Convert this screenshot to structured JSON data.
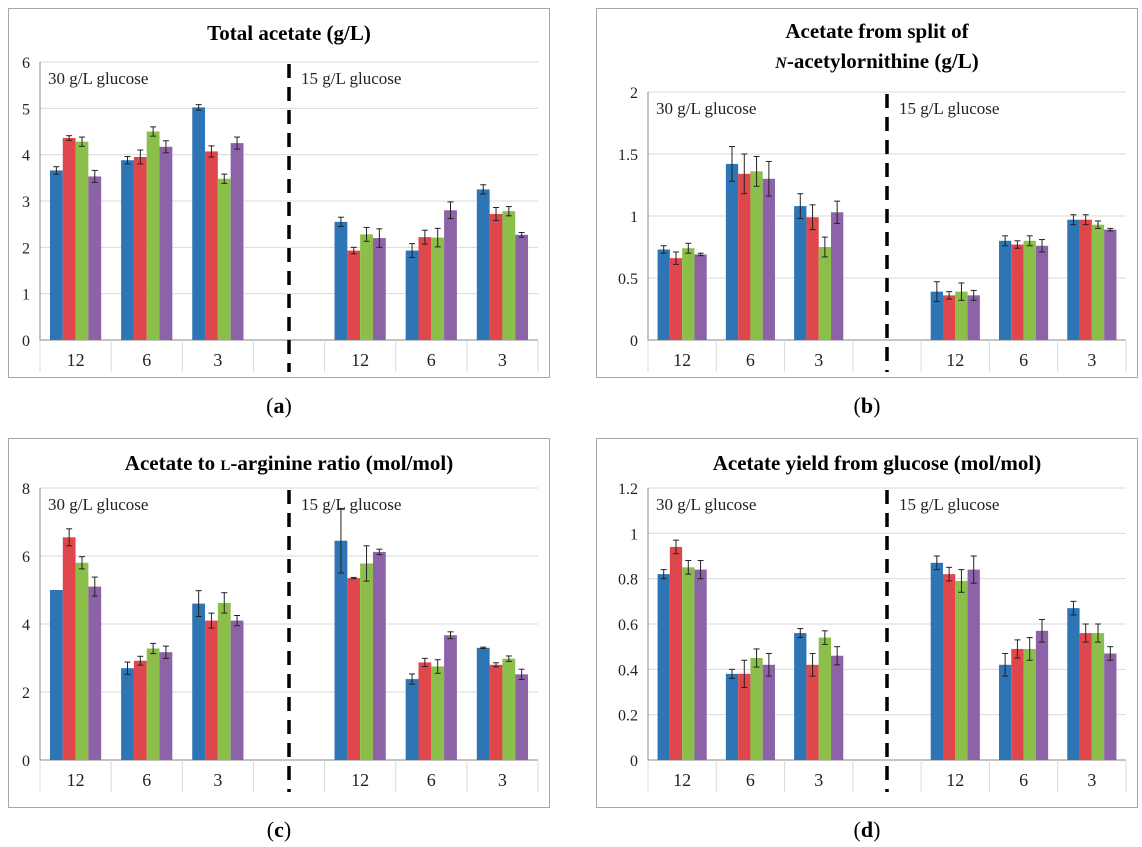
{
  "colors": {
    "series": [
      "#2e75b6",
      "#e0474c",
      "#8cbe4a",
      "#8d63a8"
    ],
    "errorbar": "#222222",
    "grid": "#d9d9d9",
    "frame": "#a6a6a6"
  },
  "chart_data": [
    {
      "type": "bar",
      "panel": "a",
      "title": "Total acetate (g/L)",
      "ylim": [
        0,
        6
      ],
      "yticks": [
        "0",
        "1",
        "2",
        "3",
        "4",
        "5",
        "6"
      ],
      "categories": [
        "12",
        "6",
        "3",
        "",
        "12",
        "6",
        "3"
      ],
      "group_labels": [
        "30 g/L glucose",
        "15 g/L glucose"
      ],
      "divider_after_category": 3,
      "series": [
        {
          "values": [
            3.66,
            3.88,
            5.02,
            null,
            2.55,
            1.93,
            3.25
          ],
          "errors": [
            0.08,
            0.08,
            0.06,
            null,
            0.1,
            0.15,
            0.1
          ]
        },
        {
          "values": [
            4.36,
            3.95,
            4.07,
            null,
            1.93,
            2.22,
            2.72
          ],
          "errors": [
            0.05,
            0.15,
            0.12,
            null,
            0.07,
            0.15,
            0.14
          ]
        },
        {
          "values": [
            4.28,
            4.5,
            3.48,
            null,
            2.28,
            2.21,
            2.78
          ],
          "errors": [
            0.1,
            0.1,
            0.1,
            null,
            0.15,
            0.2,
            0.1
          ]
        },
        {
          "values": [
            3.53,
            4.17,
            4.25,
            null,
            2.2,
            2.8,
            2.27
          ],
          "errors": [
            0.13,
            0.13,
            0.13,
            null,
            0.2,
            0.18,
            0.05
          ]
        }
      ]
    },
    {
      "type": "bar",
      "panel": "b",
      "title": "Acetate from split of",
      "title_line2_italic": "N",
      "title_line2_rest": "-acetylornithine (g/L)",
      "ylim": [
        0,
        2
      ],
      "yticks": [
        "0",
        "0.5",
        "1",
        "1.5",
        "2"
      ],
      "categories": [
        "12",
        "6",
        "3",
        "",
        "12",
        "6",
        "3"
      ],
      "group_labels": [
        "30 g/L glucose",
        "15 g/L glucose"
      ],
      "divider_after_category": 3,
      "series": [
        {
          "values": [
            0.73,
            1.42,
            1.08,
            null,
            0.39,
            0.8,
            0.97
          ],
          "errors": [
            0.03,
            0.14,
            0.1,
            null,
            0.08,
            0.04,
            0.04
          ]
        },
        {
          "values": [
            0.66,
            1.34,
            0.99,
            null,
            0.36,
            0.77,
            0.97
          ],
          "errors": [
            0.05,
            0.16,
            0.1,
            null,
            0.03,
            0.03,
            0.04
          ]
        },
        {
          "values": [
            0.74,
            1.36,
            0.75,
            null,
            0.39,
            0.8,
            0.93
          ],
          "errors": [
            0.04,
            0.12,
            0.08,
            null,
            0.07,
            0.04,
            0.03
          ]
        },
        {
          "values": [
            0.69,
            1.3,
            1.03,
            null,
            0.36,
            0.76,
            0.89
          ],
          "errors": [
            0.01,
            0.14,
            0.09,
            null,
            0.04,
            0.05,
            0.01
          ]
        }
      ]
    },
    {
      "type": "bar",
      "panel": "c",
      "title_prefix": "Acetate to ",
      "title_smallcaps": "L",
      "title_suffix": "-arginine ratio (mol/mol)",
      "ylim": [
        0,
        8
      ],
      "yticks": [
        "0",
        "2",
        "4",
        "6",
        "8"
      ],
      "categories": [
        "12",
        "6",
        "3",
        "",
        "12",
        "6",
        "3"
      ],
      "group_labels": [
        "30 g/L glucose",
        "15 g/L glucose"
      ],
      "divider_after_category": 3,
      "series": [
        {
          "values": [
            5.0,
            2.7,
            4.6,
            null,
            6.45,
            2.38,
            3.3
          ],
          "errors": [
            0.0,
            0.18,
            0.38,
            null,
            0.95,
            0.15,
            0.02
          ]
        },
        {
          "values": [
            6.55,
            2.92,
            4.1,
            null,
            5.35,
            2.87,
            2.8
          ],
          "errors": [
            0.25,
            0.13,
            0.22,
            null,
            0.02,
            0.12,
            0.06
          ]
        },
        {
          "values": [
            5.8,
            3.28,
            4.62,
            null,
            5.78,
            2.75,
            2.98
          ],
          "errors": [
            0.18,
            0.15,
            0.3,
            null,
            0.52,
            0.2,
            0.08
          ]
        },
        {
          "values": [
            5.1,
            3.17,
            4.1,
            null,
            6.12,
            3.67,
            2.52
          ],
          "errors": [
            0.28,
            0.18,
            0.15,
            null,
            0.08,
            0.1,
            0.15
          ]
        }
      ]
    },
    {
      "type": "bar",
      "panel": "d",
      "title": "Acetate yield from glucose (mol/mol)",
      "ylim": [
        0,
        1.2
      ],
      "yticks": [
        "0",
        "0.2",
        "0.4",
        "0.6",
        "0.8",
        "1",
        "1.2"
      ],
      "categories": [
        "12",
        "6",
        "3",
        "",
        "12",
        "6",
        "3"
      ],
      "group_labels": [
        "30 g/L glucose",
        "15 g/L glucose"
      ],
      "divider_after_category": 3,
      "series": [
        {
          "values": [
            0.82,
            0.38,
            0.56,
            null,
            0.87,
            0.42,
            0.67
          ],
          "errors": [
            0.02,
            0.02,
            0.02,
            null,
            0.03,
            0.05,
            0.03
          ]
        },
        {
          "values": [
            0.94,
            0.38,
            0.42,
            null,
            0.82,
            0.49,
            0.56
          ],
          "errors": [
            0.03,
            0.06,
            0.05,
            null,
            0.03,
            0.04,
            0.04
          ]
        },
        {
          "values": [
            0.85,
            0.45,
            0.54,
            null,
            0.79,
            0.49,
            0.56
          ],
          "errors": [
            0.03,
            0.04,
            0.03,
            null,
            0.05,
            0.05,
            0.04
          ]
        },
        {
          "values": [
            0.84,
            0.42,
            0.46,
            null,
            0.84,
            0.57,
            0.47
          ],
          "errors": [
            0.04,
            0.05,
            0.04,
            null,
            0.06,
            0.05,
            0.03
          ]
        }
      ]
    }
  ],
  "panel_labels": [
    "a",
    "b",
    "c",
    "d"
  ]
}
